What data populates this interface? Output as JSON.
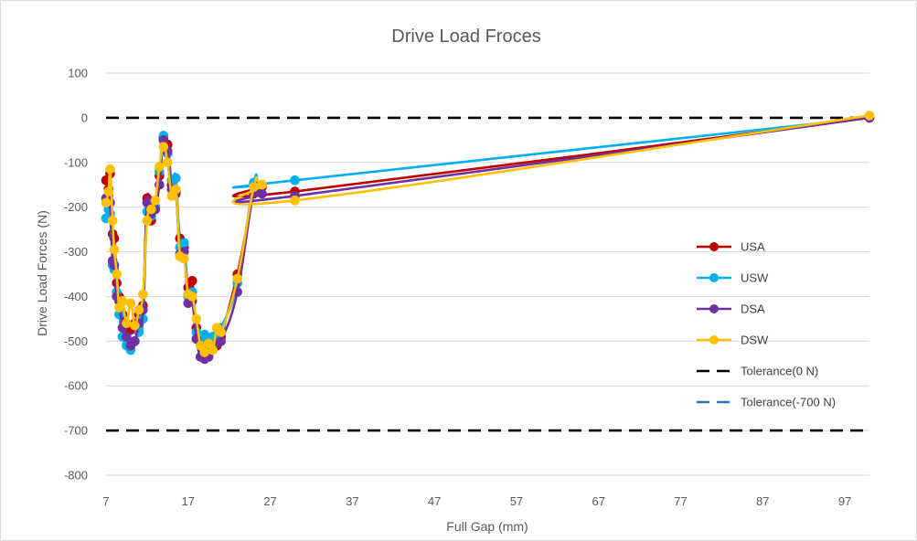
{
  "chart_data": {
    "type": "line",
    "title": "Drive Load Froces",
    "xlabel": "Full Gap (mm)",
    "ylabel": "Drive Load Forces (N)",
    "xlim": [
      7,
      100
    ],
    "ylim": [
      -800,
      100
    ],
    "x_ticks": [
      "7",
      "17",
      "27",
      "37",
      "47",
      "57",
      "67",
      "77",
      "87",
      "97"
    ],
    "y_ticks": [
      "100",
      "0",
      "-100",
      "-200",
      "-300",
      "-400",
      "-500",
      "-600",
      "-700",
      "-800"
    ],
    "grid": true,
    "legend_position": "right",
    "series": [
      {
        "name": "USA",
        "color": "#c00000",
        "points": [
          [
            7,
            -140
          ],
          [
            7.3,
            -160
          ],
          [
            7.5,
            -125
          ],
          [
            7.8,
            -260
          ],
          [
            8,
            -270
          ],
          [
            8.3,
            -370
          ],
          [
            8.6,
            -400
          ],
          [
            9,
            -440
          ],
          [
            9.5,
            -470
          ],
          [
            10,
            -475
          ],
          [
            10.5,
            -460
          ],
          [
            11,
            -440
          ],
          [
            11.5,
            -420
          ],
          [
            12,
            -180
          ],
          [
            12.5,
            -230
          ],
          [
            13,
            -200
          ],
          [
            13.5,
            -130
          ],
          [
            14,
            -45
          ],
          [
            14.5,
            -60
          ],
          [
            15,
            -150
          ],
          [
            15.5,
            -170
          ],
          [
            16,
            -270
          ],
          [
            16.5,
            -290
          ],
          [
            17,
            -380
          ],
          [
            17.5,
            -365
          ],
          [
            18,
            -470
          ],
          [
            18.5,
            -490
          ],
          [
            19,
            -510
          ],
          [
            19.5,
            -520
          ],
          [
            20,
            -515
          ],
          [
            20.5,
            -510
          ],
          [
            21,
            -490
          ],
          [
            23,
            -350
          ],
          [
            25,
            -170
          ],
          [
            26,
            -155
          ],
          [
            30,
            -165
          ],
          [
            100,
            0
          ]
        ]
      },
      {
        "name": "USW",
        "color": "#00b0f0",
        "points": [
          [
            7,
            -225
          ],
          [
            7.3,
            -205
          ],
          [
            7.5,
            -215
          ],
          [
            7.8,
            -330
          ],
          [
            8,
            -340
          ],
          [
            8.3,
            -390
          ],
          [
            8.6,
            -440
          ],
          [
            9,
            -490
          ],
          [
            9.5,
            -510
          ],
          [
            10,
            -520
          ],
          [
            10.5,
            -500
          ],
          [
            11,
            -480
          ],
          [
            11.5,
            -450
          ],
          [
            12,
            -210
          ],
          [
            12.5,
            -220
          ],
          [
            13,
            -200
          ],
          [
            13.5,
            -120
          ],
          [
            14,
            -40
          ],
          [
            14.5,
            -80
          ],
          [
            15,
            -140
          ],
          [
            15.5,
            -135
          ],
          [
            16,
            -290
          ],
          [
            16.5,
            -280
          ],
          [
            17,
            -400
          ],
          [
            17.5,
            -390
          ],
          [
            18,
            -480
          ],
          [
            18.5,
            -495
          ],
          [
            19,
            -485
          ],
          [
            19.5,
            -495
          ],
          [
            20,
            -490
          ],
          [
            20.5,
            -485
          ],
          [
            21,
            -470
          ],
          [
            23,
            -370
          ],
          [
            25,
            -145
          ],
          [
            26,
            -150
          ],
          [
            30,
            -140
          ],
          [
            100,
            0
          ]
        ]
      },
      {
        "name": "DSA",
        "color": "#7030a0",
        "points": [
          [
            7,
            -180
          ],
          [
            7.3,
            -175
          ],
          [
            7.5,
            -190
          ],
          [
            7.8,
            -320
          ],
          [
            8,
            -330
          ],
          [
            8.3,
            -400
          ],
          [
            8.6,
            -410
          ],
          [
            9,
            -470
          ],
          [
            9.5,
            -490
          ],
          [
            10,
            -510
          ],
          [
            10.5,
            -500
          ],
          [
            11,
            -460
          ],
          [
            11.5,
            -430
          ],
          [
            12,
            -190
          ],
          [
            12.5,
            -215
          ],
          [
            13,
            -205
          ],
          [
            13.5,
            -150
          ],
          [
            14,
            -50
          ],
          [
            14.5,
            -75
          ],
          [
            15,
            -160
          ],
          [
            15.5,
            -165
          ],
          [
            16,
            -305
          ],
          [
            16.5,
            -300
          ],
          [
            17,
            -415
          ],
          [
            17.5,
            -410
          ],
          [
            18,
            -495
          ],
          [
            18.5,
            -535
          ],
          [
            19,
            -540
          ],
          [
            19.5,
            -535
          ],
          [
            20,
            -510
          ],
          [
            20.5,
            -505
          ],
          [
            21,
            -500
          ],
          [
            23,
            -390
          ],
          [
            25,
            -165
          ],
          [
            26,
            -170
          ],
          [
            30,
            -175
          ],
          [
            100,
            0
          ]
        ]
      },
      {
        "name": "DSW",
        "color": "#ffc000",
        "points": [
          [
            7,
            -190
          ],
          [
            7.3,
            -165
          ],
          [
            7.5,
            -115
          ],
          [
            7.8,
            -230
          ],
          [
            8,
            -295
          ],
          [
            8.3,
            -350
          ],
          [
            8.6,
            -425
          ],
          [
            9,
            -410
          ],
          [
            9.5,
            -460
          ],
          [
            10,
            -415
          ],
          [
            10.5,
            -465
          ],
          [
            11,
            -430
          ],
          [
            11.5,
            -395
          ],
          [
            12,
            -230
          ],
          [
            12.5,
            -205
          ],
          [
            13,
            -185
          ],
          [
            13.5,
            -110
          ],
          [
            14,
            -65
          ],
          [
            14.5,
            -100
          ],
          [
            15,
            -175
          ],
          [
            15.5,
            -160
          ],
          [
            16,
            -310
          ],
          [
            16.5,
            -315
          ],
          [
            17,
            -395
          ],
          [
            17.5,
            -400
          ],
          [
            18,
            -450
          ],
          [
            18.5,
            -510
          ],
          [
            19,
            -525
          ],
          [
            19.5,
            -505
          ],
          [
            20,
            -520
          ],
          [
            20.5,
            -470
          ],
          [
            21,
            -480
          ],
          [
            23,
            -360
          ],
          [
            25,
            -155
          ],
          [
            26,
            -150
          ],
          [
            30,
            -185
          ],
          [
            100,
            5
          ]
        ]
      },
      {
        "name": "Tolerance(0 N)",
        "color": "#000000",
        "dashed": true,
        "points": [
          [
            7,
            0
          ],
          [
            100,
            0
          ]
        ]
      },
      {
        "name": "Tolerance(-700 N)",
        "color": "#2e75b6",
        "dashed": true,
        "draw_color": "#000000",
        "points": [
          [
            7,
            -700
          ],
          [
            100,
            -700
          ]
        ]
      }
    ]
  }
}
